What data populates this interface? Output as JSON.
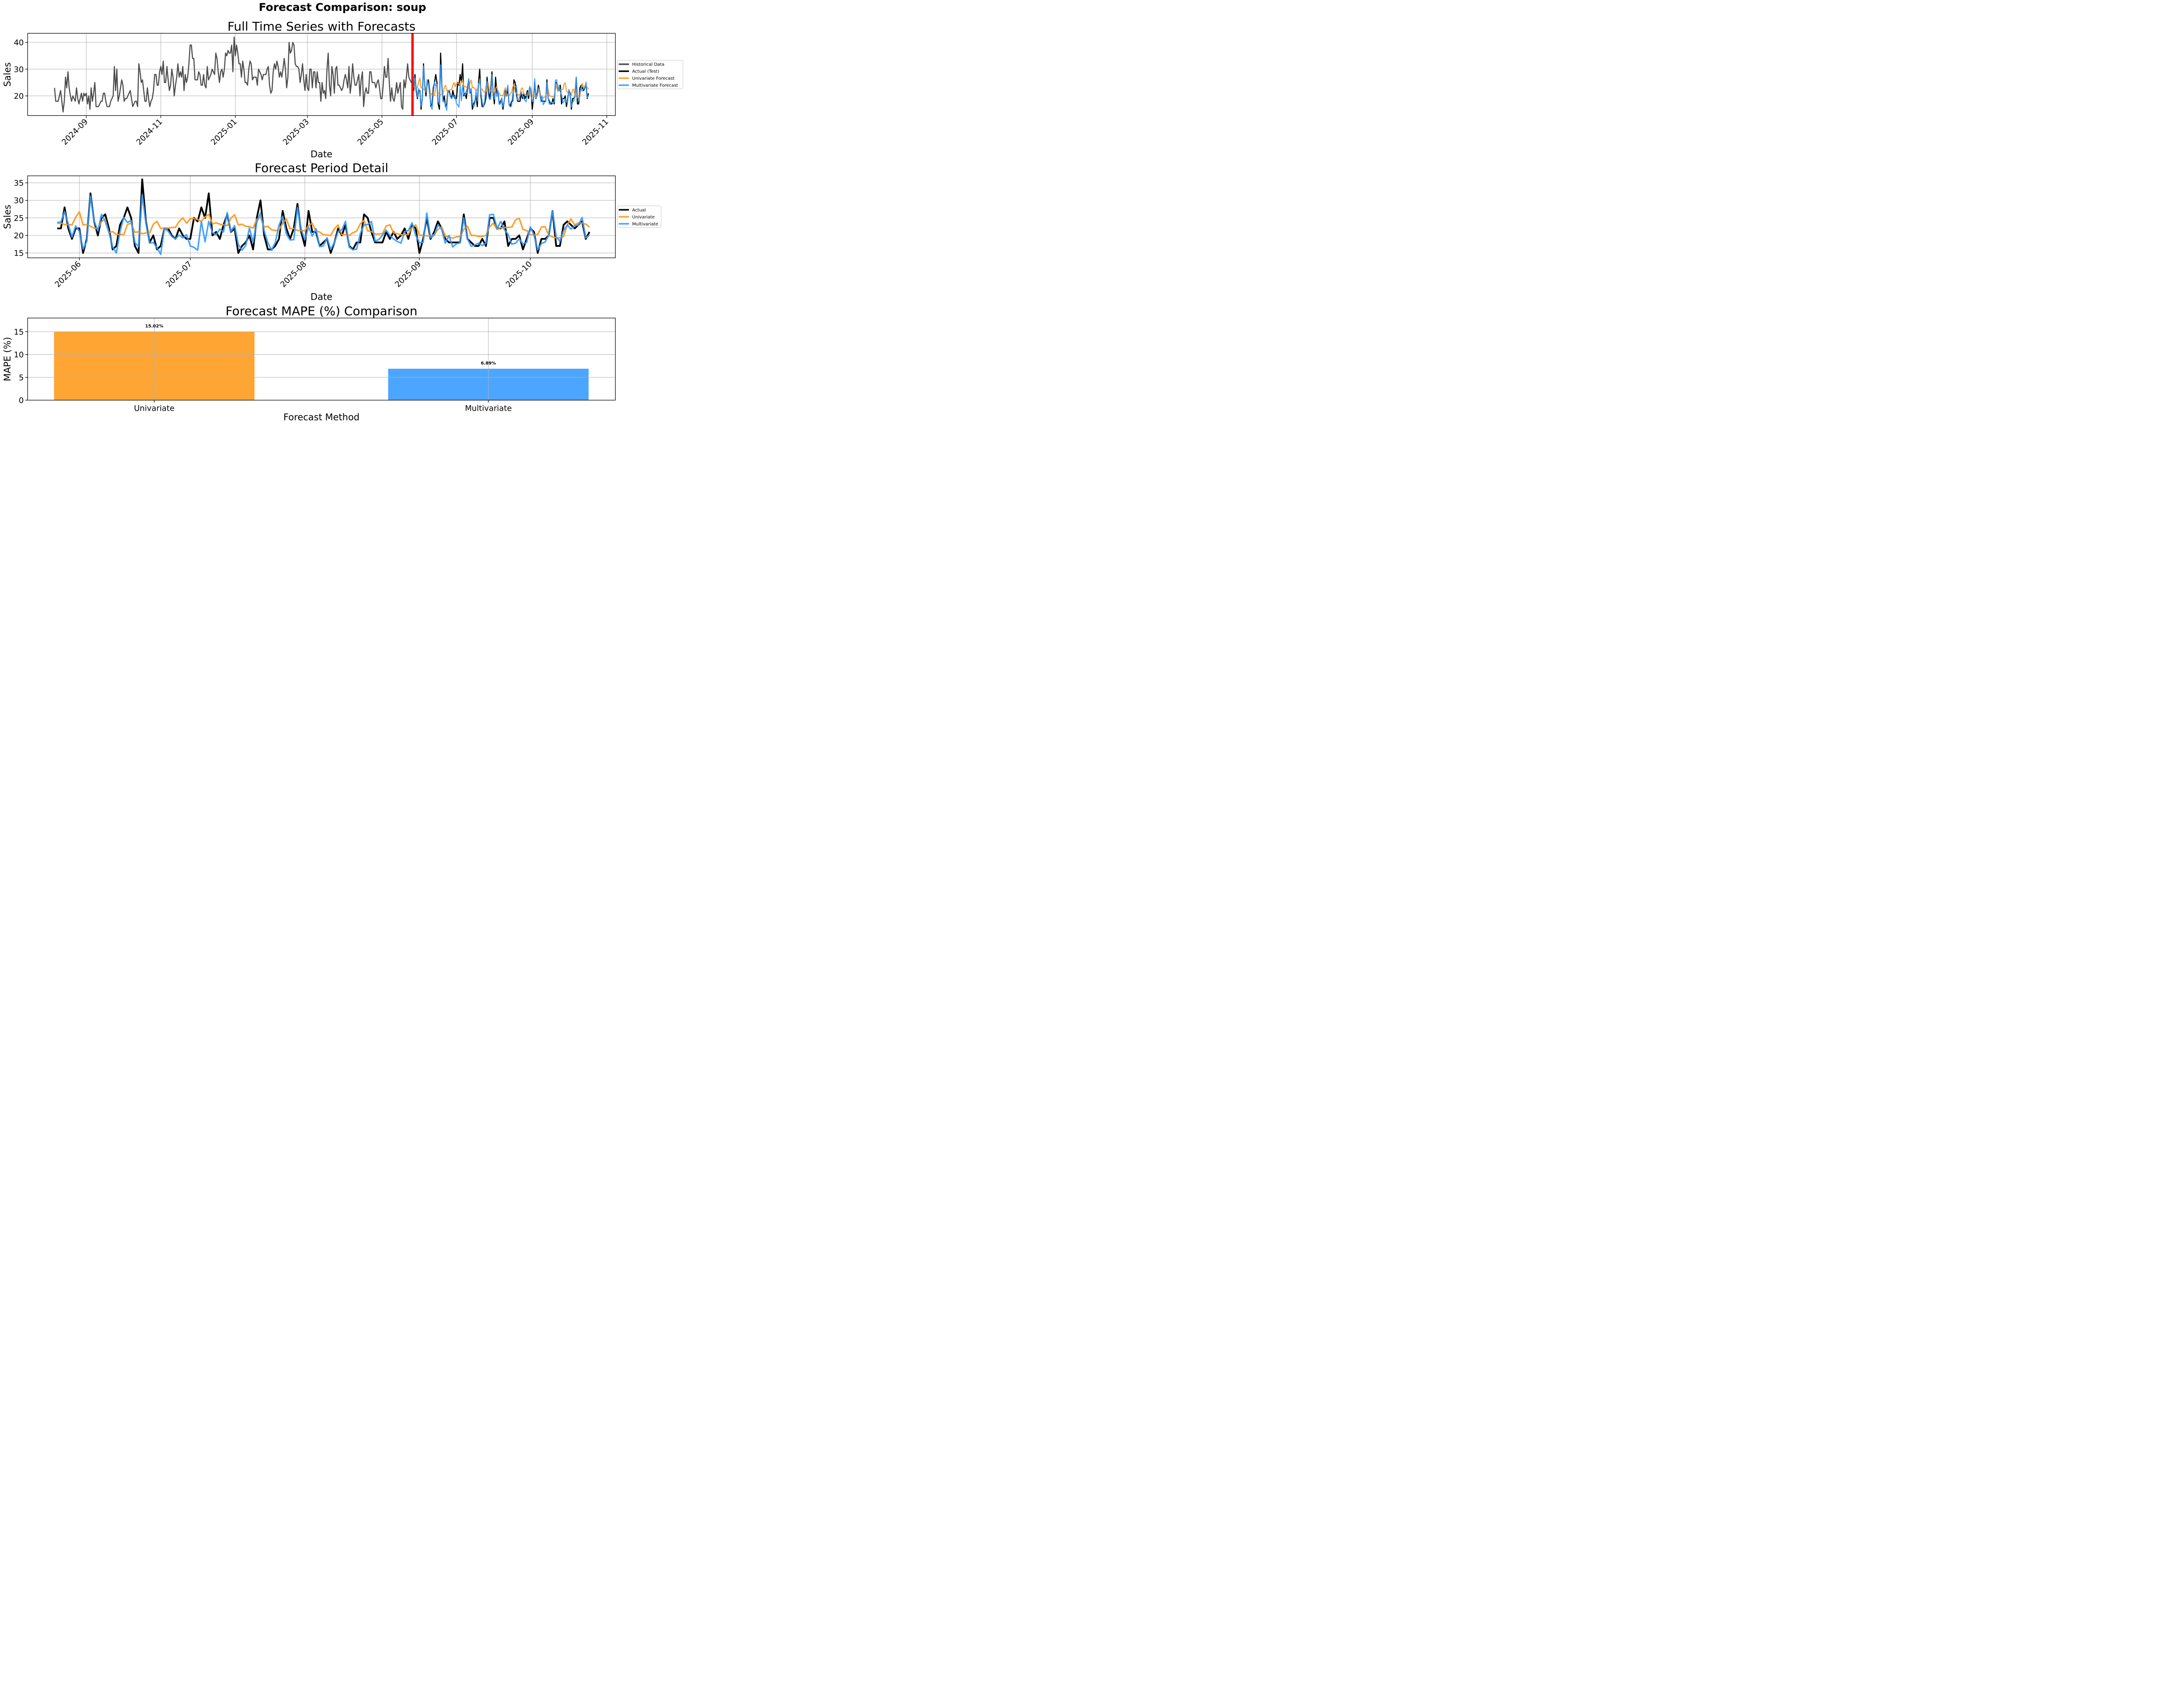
{
  "figure": {
    "suptitle": "Forecast Comparison: soup"
  },
  "colors": {
    "historical": "#4d4d4d",
    "actual": "#000000",
    "univariate": "#ff9616",
    "multivariate": "#3399ff",
    "split_line": "#ff0000",
    "bar_univariate": "#ffa533",
    "bar_multivariate": "#4ca6ff"
  },
  "chart_data": [
    {
      "type": "line",
      "title": "Full Time Series with Forecasts",
      "xlabel": "Date",
      "ylabel": "Sales",
      "xlim": [
        "2024-07-15",
        "2025-11-08"
      ],
      "ylim": [
        12.65,
        43.4
      ],
      "yticks": [
        20,
        30,
        40
      ],
      "xticks": [
        "2024-09",
        "2024-11",
        "2025-01",
        "2025-03",
        "2025-05",
        "2025-07",
        "2025-09",
        "2025-11"
      ],
      "grid": true,
      "legend_position": "right-outside",
      "split_date": "2025-05-26",
      "legend": [
        "Historical Data",
        "Actual (Test)",
        "Univariate Forecast",
        "Multivariate Forecast"
      ],
      "historical": {
        "start": "2024-08-06",
        "values": [
          23,
          18,
          18,
          18,
          20,
          22,
          18,
          14,
          18,
          27,
          23,
          29,
          23,
          20,
          18,
          20,
          19,
          18,
          23,
          19,
          17,
          19,
          21,
          18,
          21,
          20,
          21,
          17,
          20,
          15,
          23,
          18,
          21,
          25,
          16,
          16,
          16,
          17,
          18,
          18,
          21,
          21,
          18,
          16,
          16,
          16,
          18,
          19,
          20,
          31,
          22,
          30,
          18,
          20,
          23,
          26,
          24,
          18,
          19,
          19,
          20,
          21,
          22,
          19,
          16,
          17,
          18,
          18,
          16,
          32,
          29,
          25,
          26,
          22,
          18,
          18,
          23,
          19,
          16,
          18,
          19,
          22,
          28,
          28,
          24,
          24,
          29,
          31,
          28,
          33,
          25,
          25,
          31,
          26,
          22,
          24,
          30,
          27,
          20,
          24,
          27,
          32,
          27,
          29,
          27,
          31,
          22,
          28,
          25,
          27,
          32,
          39,
          39,
          34,
          34,
          26,
          26,
          26,
          29,
          28,
          24,
          24,
          28,
          24,
          23,
          31,
          26,
          27,
          28,
          30,
          29,
          28,
          36,
          34,
          29,
          25,
          29,
          30,
          27,
          30,
          36,
          35,
          37,
          36,
          36,
          39,
          29,
          42,
          35,
          39,
          36,
          32,
          32,
          27,
          33,
          30,
          25,
          25,
          24,
          30,
          33,
          32,
          26,
          27,
          27,
          27,
          24,
          30,
          29,
          28,
          26,
          28,
          28,
          28,
          30,
          31,
          24,
          21,
          22,
          29,
          32,
          30,
          33,
          31,
          27,
          29,
          27,
          30,
          34,
          30,
          23,
          27,
          40,
          36,
          37,
          40,
          39,
          32,
          31,
          31,
          30,
          25,
          28,
          32,
          26,
          22,
          28,
          23,
          22,
          30,
          30,
          23,
          29,
          29,
          23,
          29,
          25,
          25,
          18,
          25,
          21,
          22,
          19,
          30,
          36,
          24,
          20,
          31,
          28,
          21,
          30,
          31,
          24,
          24,
          23,
          22,
          23,
          26,
          28,
          26,
          23,
          31,
          21,
          25,
          32,
          27,
          24,
          24,
          26,
          28,
          20,
          26,
          29,
          16,
          21,
          23,
          21,
          21,
          29,
          29,
          25,
          25,
          25,
          23,
          25,
          26,
          23,
          19,
          19,
          24,
          31,
          27,
          27,
          34,
          25,
          18,
          23,
          19,
          18,
          21,
          25,
          21,
          23,
          25,
          16,
          15,
          26,
          23,
          27,
          32,
          27,
          26,
          25,
          26,
          27
        ]
      },
      "actual": {
        "start": "2025-05-26",
        "values": [
          22,
          22,
          28,
          22,
          19,
          22,
          22,
          15,
          19,
          32,
          24,
          20,
          25,
          26,
          22,
          16,
          17,
          23,
          25,
          28,
          25,
          17,
          15,
          36,
          24,
          18,
          20,
          16,
          17,
          22,
          22,
          20,
          19,
          22,
          20,
          19,
          19,
          25,
          24,
          28,
          25,
          32,
          20,
          21,
          19,
          23,
          26,
          21,
          22,
          15,
          17,
          18,
          20,
          16,
          25,
          30,
          20,
          16,
          16,
          17,
          19,
          27,
          22,
          19,
          22,
          29,
          21,
          17,
          27,
          21,
          21,
          17,
          18,
          19,
          15,
          18,
          22,
          20,
          23,
          17,
          16,
          18,
          18,
          26,
          25,
          21,
          18,
          18,
          18,
          21,
          19,
          21,
          19,
          20,
          22,
          19,
          23,
          22,
          15,
          19,
          25,
          19,
          21,
          24,
          22,
          19,
          18,
          18,
          18,
          18,
          26,
          19,
          18,
          17,
          17,
          19,
          17,
          25,
          25,
          22,
          22,
          24,
          17,
          19,
          19,
          20,
          16,
          19,
          22,
          21,
          15,
          19,
          19,
          20,
          27,
          17,
          17,
          23,
          24,
          23,
          22,
          23,
          24,
          19,
          21
        ]
      },
      "univariate": {
        "start": "2025-05-26",
        "values": [
          23.4,
          23.5,
          23.1,
          23.1,
          23.0,
          25.2,
          26.7,
          23.0,
          23.1,
          22.6,
          22.1,
          21.9,
          23.9,
          24.6,
          20.8,
          21.1,
          20.3,
          20.3,
          20.2,
          23.1,
          23.5,
          20.9,
          21.0,
          20.5,
          20.7,
          20.7,
          23.2,
          24.0,
          22.0,
          22.1,
          22.05,
          22.3,
          22.3,
          24.0,
          25.0,
          23.5,
          24.8,
          24.8,
          24.5,
          24.0,
          25.3,
          26.0,
          23.3,
          23.6,
          23.2,
          23.0,
          22.8,
          24.9,
          25.9,
          23.0,
          23.2,
          22.6,
          22.5,
          22.1,
          24.6,
          25.2,
          22.4,
          22.6,
          21.6,
          21.4,
          21.5,
          23.5,
          24.7,
          21.9,
          22.0,
          21.4,
          21.4,
          21.3,
          22.8,
          23.5,
          21.2,
          21.0,
          20.2,
          20.1,
          20.0,
          21.9,
          23.0,
          20.2,
          20.2,
          20.0,
          20.8,
          21.2,
          23.3,
          24.3,
          21.3,
          21.1,
          20.4,
          20.4,
          20.5,
          22.7,
          23.0,
          20.7,
          20.5,
          20.2,
          20.2,
          20.3,
          22.3,
          23.0,
          20.1,
          20.0,
          19.9,
          19.9,
          20.2,
          21.7,
          22.4,
          19.8,
          19.6,
          19.2,
          19.6,
          19.7,
          21.7,
          22.6,
          20.0,
          20.0,
          19.7,
          19.7,
          20.0,
          22.5,
          23.5,
          21.7,
          22.2,
          22.2,
          22.3,
          22.4,
          24.4,
          24.9,
          21.7,
          21.4,
          20.2,
          20.1,
          20.3,
          22.4,
          22.5,
          20.0,
          19.6,
          19.3,
          19.3,
          19.7,
          23.0,
          24.7,
          23.0,
          23.6,
          23.5,
          23.2,
          22.4
        ]
      },
      "multivariate": {
        "start": "2025-05-26",
        "values": [
          23.7,
          23.8,
          26.8,
          23.2,
          19.5,
          22.7,
          21.2,
          16.1,
          18.3,
          31.2,
          24.1,
          21.3,
          26.0,
          24.0,
          20.9,
          16.7,
          15.0,
          21.1,
          25.1,
          23.7,
          24.2,
          18.0,
          16.8,
          31.6,
          23.5,
          17.8,
          18.0,
          16.5,
          14.6,
          22.0,
          21.2,
          19.7,
          19.0,
          20.1,
          19.3,
          20.2,
          17.0,
          16.6,
          15.8,
          24.0,
          18.2,
          24.0,
          20.8,
          20.2,
          21.8,
          21.0,
          26.5,
          21.1,
          22.8,
          17.4,
          15.8,
          17.1,
          22.1,
          18.1,
          23.8,
          26.4,
          21.3,
          17.9,
          15.8,
          18.0,
          22.9,
          25.5,
          20.4,
          18.7,
          18.8,
          27.9,
          21.7,
          18.8,
          22.4,
          19.8,
          21.9,
          16.8,
          17.0,
          19.3,
          16.0,
          18.0,
          21.1,
          21.6,
          24.0,
          16.7,
          15.9,
          16.1,
          20.5,
          23.0,
          23.1,
          24.0,
          18.4,
          18.8,
          20.1,
          21.5,
          20.0,
          19.0,
          18.3,
          17.8,
          21.1,
          21.4,
          23.6,
          20.0,
          17.9,
          18.0,
          26.4,
          19.3,
          20.1,
          23.0,
          21.8,
          17.8,
          20.0,
          16.7,
          17.6,
          17.9,
          25.0,
          19.0,
          16.9,
          17.3,
          17.8,
          17.1,
          17.8,
          25.9,
          26.0,
          21.9,
          24.0,
          21.6,
          20.3,
          17.5,
          17.8,
          19.0,
          17.6,
          18.0,
          22.4,
          20.1,
          15.9,
          17.7,
          18.1,
          20.1,
          27.0,
          19.6,
          18.3,
          21.4,
          23.0,
          21.8,
          22.8,
          22.9,
          25.1,
          19.3,
          20.1
        ]
      }
    },
    {
      "type": "line",
      "title": "Forecast Period Detail",
      "xlabel": "Date",
      "ylabel": "Sales",
      "xlim": [
        "2025-05-18",
        "2025-10-24"
      ],
      "ylim": [
        13.6,
        37.0
      ],
      "yticks": [
        15,
        20,
        25,
        30,
        35
      ],
      "xticks": [
        "2025-06",
        "2025-07",
        "2025-08",
        "2025-09",
        "2025-10"
      ],
      "grid": true,
      "legend_position": "right-outside",
      "legend": [
        "Actual",
        "Univariate",
        "Multivariate"
      ],
      "series_ref": "same as chart 1 actual / univariate / multivariate"
    },
    {
      "type": "bar",
      "title": "Forecast MAPE (%) Comparison",
      "xlabel": "Forecast Method",
      "ylabel": "MAPE (%)",
      "categories": [
        "Univariate",
        "Multivariate"
      ],
      "values": [
        15.02,
        6.89
      ],
      "value_labels": [
        "15.02%",
        "6.89%"
      ],
      "ylim": [
        0,
        18.0
      ],
      "yticks": [
        0,
        5,
        10,
        15
      ],
      "grid": true
    }
  ]
}
